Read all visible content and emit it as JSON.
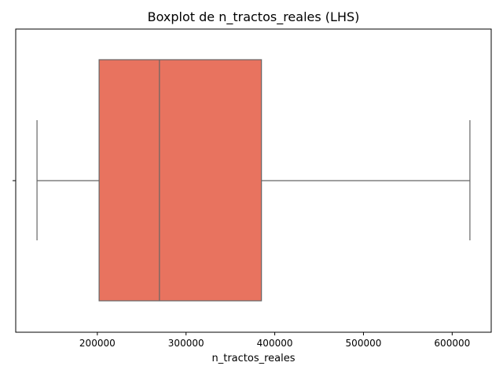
{
  "chart_data": {
    "type": "boxplot",
    "title": "Boxplot de n_tractos_reales (LHS)",
    "xlabel": "n_tractos_reales",
    "ylabel": "",
    "orientation": "horizontal",
    "xlim": [
      108000,
      644000
    ],
    "xticks": [
      200000,
      300000,
      400000,
      500000,
      600000
    ],
    "xtick_labels": [
      "200000",
      "300000",
      "400000",
      "500000",
      "600000"
    ],
    "grid": false,
    "box": {
      "whisker_low": 132000,
      "q1": 202000,
      "median": 270000,
      "q3": 385000,
      "whisker_high": 620000
    },
    "colors": {
      "box_fill": "#e8735f",
      "line": "#666666",
      "axis": "#000000"
    }
  }
}
